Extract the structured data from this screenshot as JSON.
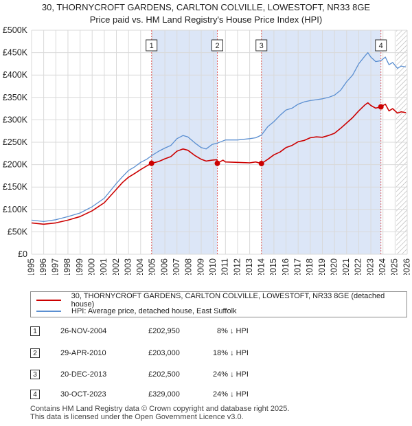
{
  "header": {
    "title": "30, THORNYCROFT GARDENS, CARLTON COLVILLE, LOWESTOFT, NR33 8GE",
    "subtitle": "Price paid vs. HM Land Registry's House Price Index (HPI)"
  },
  "legend": {
    "property_label": "30, THORNYCROFT GARDENS, CARLTON COLVILLE, LOWESTOFT, NR33 8GE (detached house)",
    "hpi_label": "HPI: Average price, detached house, East Suffolk"
  },
  "colors": {
    "property": "#cc0000",
    "hpi": "#5b8fd1",
    "shade": "#dce6f7",
    "grid": "#d9d9d9",
    "vline": "#e06060"
  },
  "transactions": [
    {
      "num": "1",
      "date": "26-NOV-2004",
      "price": "£202,950",
      "hpi_diff": "8% ↓ HPI"
    },
    {
      "num": "2",
      "date": "29-APR-2010",
      "price": "£203,000",
      "hpi_diff": "18% ↓ HPI"
    },
    {
      "num": "3",
      "date": "20-DEC-2013",
      "price": "£202,500",
      "hpi_diff": "24% ↓ HPI"
    },
    {
      "num": "4",
      "date": "30-OCT-2023",
      "price": "£329,000",
      "hpi_diff": "24% ↓ HPI"
    }
  ],
  "footer": {
    "line1": "Contains HM Land Registry data © Crown copyright and database right 2025.",
    "line2": "This data is licensed under the Open Government Licence v3.0."
  },
  "chart_data": {
    "type": "line",
    "title": "30, THORNYCROFT GARDENS, CARLTON COLVILLE, LOWESTOFT, NR33 8GE",
    "subtitle": "Price paid vs. HM Land Registry's House Price Index (HPI)",
    "xlabel": "",
    "ylabel": "",
    "xlim": [
      1995,
      2026
    ],
    "ylim": [
      0,
      500000
    ],
    "y_ticks": [
      0,
      50000,
      100000,
      150000,
      200000,
      250000,
      300000,
      350000,
      400000,
      450000,
      500000
    ],
    "y_tick_labels": [
      "£0",
      "£50K",
      "£100K",
      "£150K",
      "£200K",
      "£250K",
      "£300K",
      "£350K",
      "£400K",
      "£450K",
      "£500K"
    ],
    "x_ticks": [
      1995,
      1996,
      1997,
      1998,
      1999,
      2000,
      2001,
      2002,
      2003,
      2004,
      2005,
      2006,
      2007,
      2008,
      2009,
      2010,
      2011,
      2012,
      2013,
      2014,
      2015,
      2016,
      2017,
      2018,
      2019,
      2020,
      2021,
      2022,
      2023,
      2024,
      2025,
      2026
    ],
    "grid": true,
    "shaded_ranges": [
      [
        2004.9,
        2010.33
      ],
      [
        2013.97,
        2023.83
      ]
    ],
    "hatched_from": 2025.1,
    "series": [
      {
        "name": "HPI: Average price, detached house, East Suffolk",
        "x": [
          1995,
          1996,
          1997,
          1998,
          1999,
          2000,
          2001,
          2002,
          2002.5,
          2003,
          2003.5,
          2004,
          2004.5,
          2004.9,
          2005.5,
          2006,
          2006.5,
          2007,
          2007.5,
          2007.9,
          2008.5,
          2009,
          2009.4,
          2009.9,
          2010.33,
          2011,
          2012,
          2013,
          2013.5,
          2013.97,
          2014.5,
          2015,
          2015.5,
          2016,
          2016.5,
          2017,
          2017.5,
          2018,
          2018.5,
          2019,
          2019.5,
          2020,
          2020.5,
          2021,
          2021.5,
          2022,
          2022.5,
          2022.75,
          2023,
          2023.4,
          2023.83,
          2024.2,
          2024.5,
          2024.8,
          2025.2,
          2025.5,
          2025.9
        ],
        "values": [
          76000,
          73000,
          77000,
          84000,
          92000,
          106000,
          125000,
          158000,
          173000,
          187000,
          195000,
          205000,
          212000,
          220000,
          230000,
          237000,
          243000,
          258000,
          265000,
          262000,
          248000,
          238000,
          235000,
          245000,
          248000,
          255000,
          255000,
          258000,
          260000,
          266000,
          285000,
          296000,
          310000,
          322000,
          326000,
          335000,
          340000,
          343000,
          345000,
          347000,
          350000,
          355000,
          366000,
          385000,
          400000,
          425000,
          442000,
          450000,
          440000,
          430000,
          432000,
          440000,
          423000,
          428000,
          415000,
          420000,
          418000
        ]
      },
      {
        "name": "30, THORNYCROFT GARDENS, CARLTON COLVILLE, LOWESTOFT, NR33 8GE (detached house)",
        "x": [
          1995,
          1996,
          1997,
          1998,
          1999,
          2000,
          2001,
          2002,
          2002.5,
          2003,
          2003.5,
          2004,
          2004.5,
          2004.9,
          2005.5,
          2006,
          2006.5,
          2007,
          2007.5,
          2007.9,
          2008.5,
          2009,
          2009.4,
          2009.9,
          2010.3,
          2010.33,
          2010.8,
          2011,
          2012,
          2013,
          2013.5,
          2013.97,
          2014.5,
          2015,
          2015.5,
          2016,
          2016.5,
          2017,
          2017.5,
          2018,
          2018.5,
          2019,
          2019.5,
          2020,
          2020.5,
          2021,
          2021.5,
          2022,
          2022.5,
          2022.75,
          2023,
          2023.4,
          2023.83,
          2024.2,
          2024.5,
          2024.8,
          2025.2,
          2025.5,
          2025.9
        ],
        "values": [
          70000,
          67000,
          70000,
          76000,
          84000,
          97000,
          115000,
          145000,
          160000,
          172000,
          180000,
          189000,
          197000,
          202950,
          207000,
          213000,
          218000,
          230000,
          235000,
          232000,
          220000,
          212000,
          208000,
          210000,
          211000,
          203000,
          210000,
          206000,
          205000,
          204000,
          206000,
          202500,
          212000,
          222000,
          228000,
          238000,
          243000,
          251000,
          254000,
          260000,
          262000,
          261000,
          265000,
          270000,
          281000,
          293000,
          305000,
          320000,
          333000,
          338000,
          332000,
          326000,
          329000,
          335000,
          320000,
          325000,
          315000,
          318000,
          316000
        ]
      }
    ],
    "sale_points": [
      {
        "label": "1",
        "x": 2004.9,
        "y": 202950
      },
      {
        "label": "2",
        "x": 2010.33,
        "y": 203000
      },
      {
        "label": "3",
        "x": 2013.97,
        "y": 202500
      },
      {
        "label": "4",
        "x": 2023.83,
        "y": 329000
      }
    ]
  }
}
